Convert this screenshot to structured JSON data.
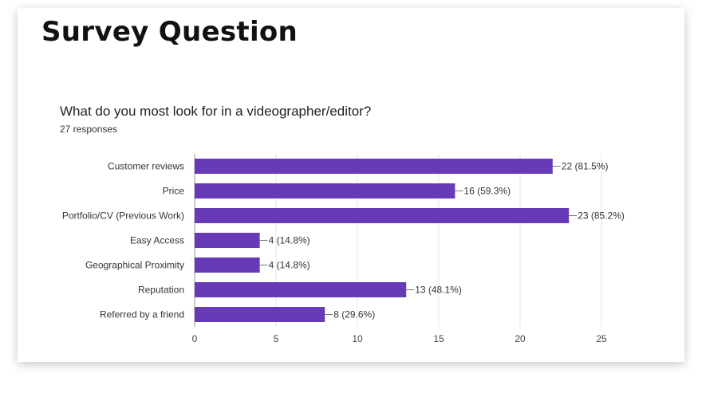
{
  "slide": {
    "title": "Survey Question"
  },
  "question": {
    "text": "What do you most look for in a videographer/editor?",
    "responses": "27 responses"
  },
  "colors": {
    "bar": "#673ab7",
    "grid": "#e6e6e6",
    "axis": "#999999"
  },
  "chart_data": {
    "type": "bar",
    "orientation": "horizontal",
    "title": "What do you most look for in a videographer/editor?",
    "subtitle": "27 responses",
    "categories": [
      "Customer reviews",
      "Price",
      "Portfolio/CV (Previous Work)",
      "Easy Access",
      "Geographical Proximity",
      "Reputation",
      "Referred by a friend"
    ],
    "values": [
      22,
      16,
      23,
      4,
      4,
      13,
      8
    ],
    "labels": [
      "22 (81.5%)",
      "16 (59.3%)",
      "23 (85.2%)",
      "4 (14.8%)",
      "4 (14.8%)",
      "13 (48.1%)",
      "8 (29.6%)"
    ],
    "xlim": [
      0,
      25
    ],
    "xticks": [
      0,
      5,
      10,
      15,
      20,
      25
    ],
    "grid": true,
    "xlabel": "",
    "ylabel": ""
  }
}
